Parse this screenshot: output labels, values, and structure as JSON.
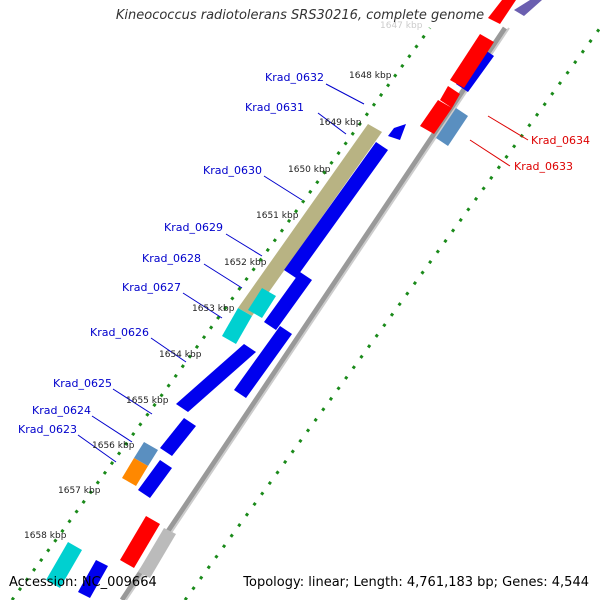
{
  "title": "Kineococcus radiotolerans SRS30216, complete genome",
  "footer": {
    "accession": "Accession: NC_009664",
    "topology": "Topology: linear; Length: 4,761,183 bp; Genes: 4,544"
  },
  "colors": {
    "forward_cds": "#ff0000",
    "reverse_cds": "#0000ee",
    "forward_label": "#dd0000",
    "reverse_label": "#0000cc",
    "gc_skew": "#1a8a1a",
    "backbone": "#888888",
    "gene_locus_band": "#b8b383",
    "cyan_feature": "#00d0d0",
    "steelblue_feature": "#5a8fc0",
    "orange_feature": "#ff8800"
  },
  "kbp_ticks": [
    "1647 kbp",
    "1648 kbp",
    "1649 kbp",
    "1650 kbp",
    "1651 kbp",
    "1652 kbp",
    "1653 kbp",
    "1654 kbp",
    "1655 kbp",
    "1656 kbp",
    "1657 kbp",
    "1658 kbp"
  ],
  "reverse_genes": [
    "Krad_0632",
    "Krad_0631",
    "Krad_0630",
    "Krad_0629",
    "Krad_0628",
    "Krad_0627",
    "Krad_0626",
    "Krad_0625",
    "Krad_0624",
    "Krad_0623"
  ],
  "forward_genes": [
    "Krad_0634",
    "Krad_0633"
  ]
}
